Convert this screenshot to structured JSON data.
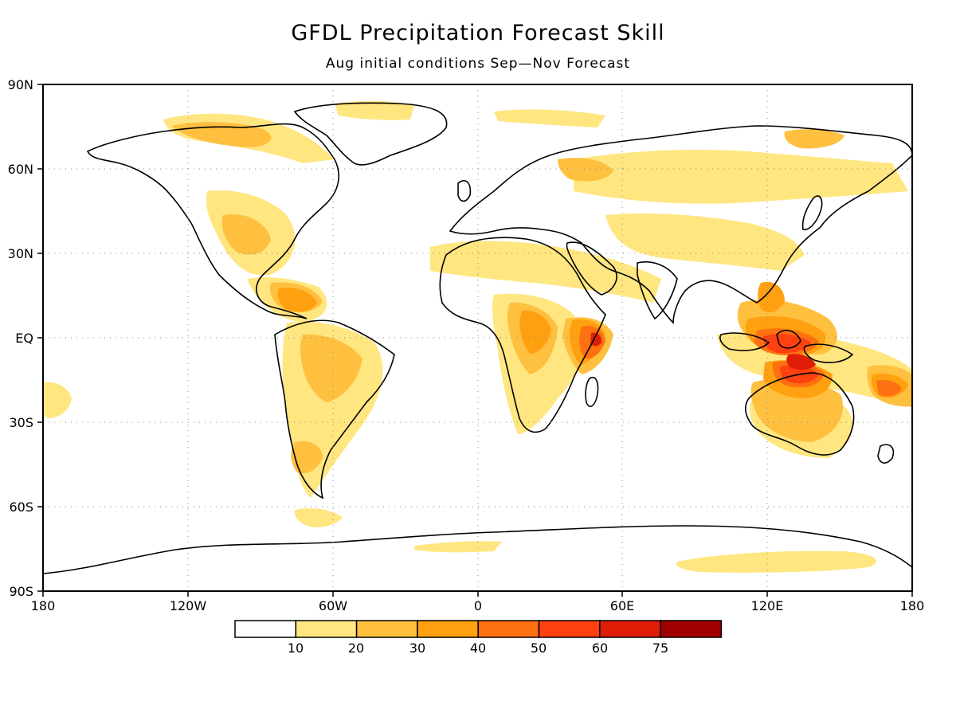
{
  "title": "GFDL Precipitation Forecast Skill",
  "subtitle": "Aug initial conditions   Sep—Nov Forecast",
  "axes": {
    "lat_ticks": [
      "90N",
      "60N",
      "30N",
      "EQ",
      "30S",
      "60S",
      "90S"
    ],
    "lon_ticks": [
      "180",
      "120W",
      "60W",
      "0",
      "60E",
      "120E",
      "180"
    ]
  },
  "colorbar": {
    "labels": [
      "10",
      "20",
      "30",
      "40",
      "50",
      "60",
      "75"
    ],
    "colors": [
      "#ffffff",
      "#ffe680",
      "#ffc040",
      "#ffa010",
      "#ff7010",
      "#ff4010",
      "#e01e08",
      "#a00000"
    ]
  },
  "map": {
    "land_color": "#ffffff",
    "coast_color": "#000000",
    "grid": "dotted"
  }
}
